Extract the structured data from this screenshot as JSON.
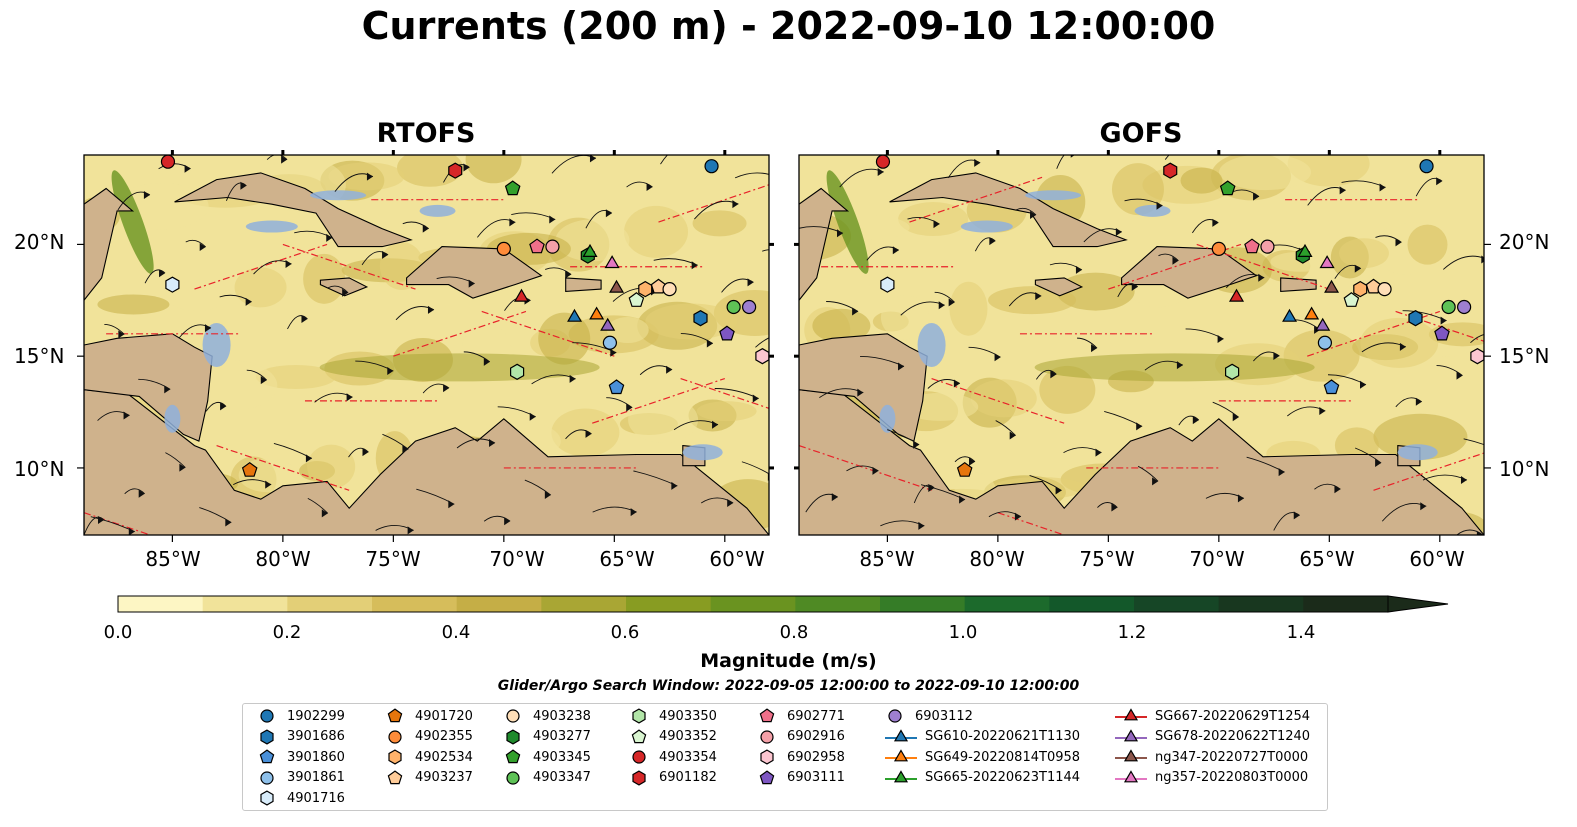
{
  "title": "Currents (200 m) - 2022-09-10 12:00:00",
  "panels": [
    {
      "title": "RTOFS"
    },
    {
      "title": "GOFS"
    }
  ],
  "lat_labels": [
    "20°N",
    "15°N",
    "10°N"
  ],
  "lon_labels": [
    "85°W",
    "80°W",
    "75°W",
    "70°W",
    "65°W",
    "60°W"
  ],
  "colorbar": {
    "label": "Magnitude (m/s)",
    "ticks": [
      "0.0",
      "0.2",
      "0.4",
      "0.6",
      "0.8",
      "1.0",
      "1.2",
      "1.4"
    ],
    "colors": [
      "#fdf6c4",
      "#f1e39a",
      "#e3cf77",
      "#d6bd5b",
      "#c5ae46",
      "#a9a634",
      "#889c22",
      "#6a9320",
      "#4f8a24",
      "#357c27",
      "#1c6a2c",
      "#13582a",
      "#164626",
      "#18371f",
      "#1b2b1a"
    ]
  },
  "search_window": "Glider/Argo Search Window: 2022-09-05 12:00:00 to 2022-09-10 12:00:00",
  "chart_data": {
    "type": "heatmap",
    "title": "Currents (200 m) - 2022-09-10 12:00:00",
    "variable": "current magnitude",
    "units": "m/s",
    "colorbar_range": [
      0.0,
      1.5
    ],
    "extend": "max",
    "lon_range": [
      -89,
      -58
    ],
    "lat_range": [
      7,
      24
    ],
    "panels": [
      "RTOFS",
      "GOFS"
    ],
    "platforms": [
      {
        "name": "1902299",
        "marker": "circle",
        "color": "#1f77b4",
        "lon": -60.6,
        "lat": 23.5
      },
      {
        "name": "3901686",
        "marker": "hexagon",
        "color": "#1f77b4",
        "lon": -61.1,
        "lat": 16.7
      },
      {
        "name": "3901860",
        "marker": "pentagon",
        "color": "#4a90d9",
        "lon": -64.9,
        "lat": 13.6
      },
      {
        "name": "3901861",
        "marker": "circle",
        "color": "#8ec0ea",
        "lon": -65.2,
        "lat": 15.6
      },
      {
        "name": "4901716",
        "marker": "hexagon",
        "color": "#d8ecfa",
        "lon": -85.0,
        "lat": 18.2
      },
      {
        "name": "4901720",
        "marker": "pentagon",
        "color": "#e6750c",
        "lon": -81.5,
        "lat": 9.9
      },
      {
        "name": "4902355",
        "marker": "circle",
        "color": "#ff8c3a",
        "lon": -70.0,
        "lat": 19.8
      },
      {
        "name": "4902534",
        "marker": "hexagon",
        "color": "#ffb36b",
        "lon": -63.6,
        "lat": 18.0
      },
      {
        "name": "4903237",
        "marker": "pentagon",
        "color": "#ffcc99",
        "lon": -63.0,
        "lat": 18.1
      },
      {
        "name": "4903238",
        "marker": "circle",
        "color": "#ffdfb8",
        "lon": -62.5,
        "lat": 18.0
      },
      {
        "name": "4903277",
        "marker": "hexagon",
        "color": "#1f8a2c",
        "lon": -66.2,
        "lat": 19.5
      },
      {
        "name": "4903345",
        "marker": "pentagon",
        "color": "#33a02c",
        "lon": -69.6,
        "lat": 22.5
      },
      {
        "name": "4903347",
        "marker": "circle",
        "color": "#5ec256",
        "lon": -59.6,
        "lat": 17.2
      },
      {
        "name": "4903350",
        "marker": "hexagon",
        "color": "#b2e6a8",
        "lon": -69.4,
        "lat": 14.3
      },
      {
        "name": "4903352",
        "marker": "pentagon",
        "color": "#d9f5d0",
        "lon": -64.0,
        "lat": 17.5
      },
      {
        "name": "4903354",
        "marker": "circle",
        "color": "#d62728",
        "lon": -85.2,
        "lat": 23.7
      },
      {
        "name": "6901182",
        "marker": "hexagon",
        "color": "#d62728",
        "lon": -72.2,
        "lat": 23.3
      },
      {
        "name": "6902771",
        "marker": "pentagon",
        "color": "#f0708a",
        "lon": -68.5,
        "lat": 19.9
      },
      {
        "name": "6902916",
        "marker": "circle",
        "color": "#f4a0a8",
        "lon": -67.8,
        "lat": 19.9
      },
      {
        "name": "6902958",
        "marker": "hexagon",
        "color": "#fcc6d0",
        "lon": -58.3,
        "lat": 15.0
      },
      {
        "name": "6903111",
        "marker": "pentagon",
        "color": "#7e57c2",
        "lon": -59.9,
        "lat": 16.0
      },
      {
        "name": "6903112",
        "marker": "circle",
        "color": "#9e7fd0",
        "lon": -58.9,
        "lat": 17.2
      },
      {
        "name": "SG610-20220621T1130",
        "marker": "triangle",
        "color": "#1f77b4",
        "lon": -66.8,
        "lat": 16.8
      },
      {
        "name": "SG649-20220814T0958",
        "marker": "triangle",
        "color": "#ff7f0e",
        "lon": -65.8,
        "lat": 16.9
      },
      {
        "name": "SG665-20220623T1144",
        "marker": "triangle",
        "color": "#2ca02c",
        "lon": -66.1,
        "lat": 19.7
      },
      {
        "name": "SG667-20220629T1254",
        "marker": "triangle",
        "color": "#d62728",
        "lon": -69.2,
        "lat": 17.7
      },
      {
        "name": "SG678-20220622T1240",
        "marker": "triangle",
        "color": "#9467bd",
        "lon": -65.3,
        "lat": 16.4
      },
      {
        "name": "ng347-20220727T0000",
        "marker": "triangle",
        "color": "#8c564b",
        "lon": -64.9,
        "lat": 18.1
      },
      {
        "name": "ng357-20220803T0000",
        "marker": "triangle",
        "color": "#e377c2",
        "lon": -65.1,
        "lat": 19.2
      }
    ]
  }
}
